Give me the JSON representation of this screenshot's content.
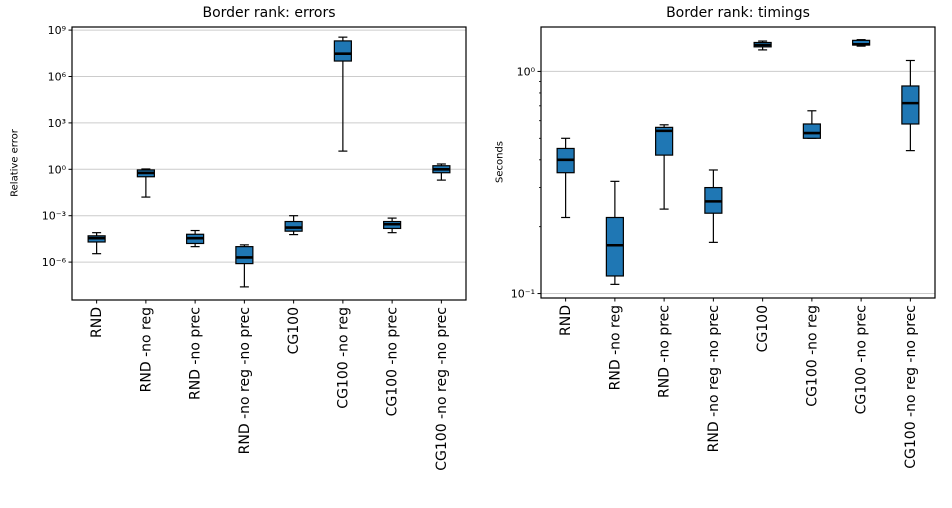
{
  "figure": {
    "background": "#ffffff",
    "box_fill": "#1f77b4",
    "box_edge": "#000000",
    "median_color": "#000000",
    "grid_color": "#cccccc",
    "spine_color": "#000000",
    "text_color": "#000000"
  },
  "chart_data": [
    {
      "type": "boxplot",
      "title": "Border rank: errors",
      "ylabel": "Relative error",
      "yscale": "log",
      "ylim": [
        3.5e-09,
        1600000000.0
      ],
      "grid": "major-horizontal",
      "ytick_exponents": [
        9,
        6,
        3,
        0,
        -3,
        -6
      ],
      "ytick_minor": [],
      "categories": [
        "RND",
        "RND -no reg",
        "RND -no prec",
        "RND -no reg -no prec",
        "CG100",
        "CG100 -no reg",
        "CG100 -no prec",
        "CG100 -no reg -no prec"
      ],
      "boxes": [
        {
          "label": "RND",
          "whisker_low": 3.5e-06,
          "q1": 2e-05,
          "median": 3.5e-05,
          "q3": 5e-05,
          "whisker_high": 8e-05
        },
        {
          "label": "RND -no reg",
          "whisker_low": 0.016,
          "q1": 0.33,
          "median": 0.58,
          "q3": 0.91,
          "whisker_high": 1.05
        },
        {
          "label": "RND -no prec",
          "whisker_low": 1e-05,
          "q1": 1.6e-05,
          "median": 3.5e-05,
          "q3": 6.3e-05,
          "whisker_high": 0.00011
        },
        {
          "label": "RND -no reg -no prec",
          "whisker_low": 2.5e-08,
          "q1": 8e-07,
          "median": 2e-06,
          "q3": 1e-05,
          "whisker_high": 1.3e-05
        },
        {
          "label": "CG100",
          "whisker_low": 6e-05,
          "q1": 0.0001,
          "median": 0.00017,
          "q3": 0.00042,
          "whisker_high": 0.001
        },
        {
          "label": "CG100 -no reg",
          "whisker_low": 15,
          "q1": 10000000.0,
          "median": 30000000.0,
          "q3": 200000000.0,
          "whisker_high": 350000000.0
        },
        {
          "label": "CG100 -no prec",
          "whisker_low": 8e-05,
          "q1": 0.00015,
          "median": 0.00028,
          "q3": 0.00042,
          "whisker_high": 0.0007
        },
        {
          "label": "CG100 -no reg -no prec",
          "whisker_low": 0.2,
          "q1": 0.6,
          "median": 1.0,
          "q3": 1.7,
          "whisker_high": 2.2
        }
      ]
    },
    {
      "type": "boxplot",
      "title": "Border rank: timings",
      "ylabel": "Seconds",
      "yscale": "log",
      "ylim": [
        0.096,
        1.585
      ],
      "grid": "major-horizontal",
      "ytick_exponents": [
        0,
        -1
      ],
      "ytick_minor": [
        0.9,
        0.8,
        0.7,
        0.6,
        0.5,
        0.4,
        0.3,
        0.2
      ],
      "categories": [
        "RND",
        "RND -no reg",
        "RND -no prec",
        "RND -no reg -no prec",
        "CG100",
        "CG100 -no reg",
        "CG100 -no prec",
        "CG100 -no reg -no prec"
      ],
      "boxes": [
        {
          "label": "RND",
          "whisker_low": 0.22,
          "q1": 0.35,
          "median": 0.4,
          "q3": 0.45,
          "whisker_high": 0.5
        },
        {
          "label": "RND -no reg",
          "whisker_low": 0.11,
          "q1": 0.12,
          "median": 0.165,
          "q3": 0.22,
          "whisker_high": 0.32
        },
        {
          "label": "RND -no prec",
          "whisker_low": 0.24,
          "q1": 0.42,
          "median": 0.54,
          "q3": 0.56,
          "whisker_high": 0.575
        },
        {
          "label": "RND -no reg -no prec",
          "whisker_low": 0.17,
          "q1": 0.23,
          "median": 0.26,
          "q3": 0.3,
          "whisker_high": 0.36
        },
        {
          "label": "CG100",
          "whisker_low": 1.25,
          "q1": 1.29,
          "median": 1.315,
          "q3": 1.35,
          "whisker_high": 1.37
        },
        {
          "label": "CG100 -no reg",
          "whisker_low": 0.5,
          "q1": 0.5,
          "median": 0.528,
          "q3": 0.58,
          "whisker_high": 0.665
        },
        {
          "label": "CG100 -no prec",
          "whisker_low": 1.3,
          "q1": 1.315,
          "median": 1.325,
          "q3": 1.38,
          "whisker_high": 1.39
        },
        {
          "label": "CG100 -no reg -no prec",
          "whisker_low": 0.44,
          "q1": 0.58,
          "median": 0.72,
          "q3": 0.86,
          "whisker_high": 1.12
        }
      ]
    }
  ]
}
